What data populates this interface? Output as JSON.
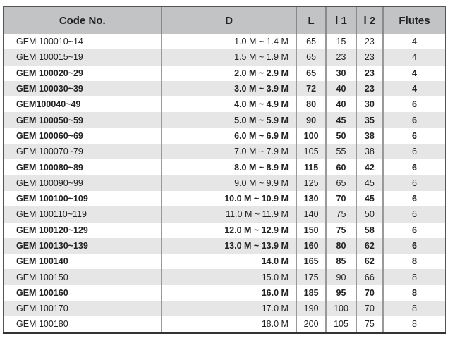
{
  "headers": [
    "Code No.",
    "D",
    "L",
    "l 1",
    "l 2",
    "Flutes"
  ],
  "rows": [
    {
      "cells": [
        "GEM 100010~14",
        "1.0 M ~ 1.4 M",
        "65",
        "15",
        "23",
        "4"
      ],
      "bold": false
    },
    {
      "cells": [
        "GEM 100015~19",
        "1.5 M ~ 1.9 M",
        "65",
        "23",
        "23",
        "4"
      ],
      "bold": false
    },
    {
      "cells": [
        "GEM 100020~29",
        "2.0 M ~ 2.9 M",
        "65",
        "30",
        "23",
        "4"
      ],
      "bold": true
    },
    {
      "cells": [
        "GEM 100030~39",
        "3.0 M ~ 3.9 M",
        "72",
        "40",
        "23",
        "4"
      ],
      "bold": true
    },
    {
      "cells": [
        "GEM100040~49",
        "4.0 M ~ 4.9 M",
        "80",
        "40",
        "30",
        "6"
      ],
      "bold": true
    },
    {
      "cells": [
        "GEM 100050~59",
        "5.0 M ~ 5.9 M",
        "90",
        "45",
        "35",
        "6"
      ],
      "bold": true
    },
    {
      "cells": [
        "GEM 100060~69",
        "6.0 M ~ 6.9 M",
        "100",
        "50",
        "38",
        "6"
      ],
      "bold": true
    },
    {
      "cells": [
        "GEM 100070~79",
        "7.0 M ~ 7.9 M",
        "105",
        "55",
        "38",
        "6"
      ],
      "bold": false
    },
    {
      "cells": [
        "GEM 100080~89",
        "8.0 M ~ 8.9 M",
        "115",
        "60",
        "42",
        "6"
      ],
      "bold": true
    },
    {
      "cells": [
        "GEM 100090~99",
        "9.0 M ~ 9.9 M",
        "125",
        "65",
        "45",
        "6"
      ],
      "bold": false
    },
    {
      "cells": [
        "GEM 100100~109",
        "10.0 M ~ 10.9 M",
        "130",
        "70",
        "45",
        "6"
      ],
      "bold": true
    },
    {
      "cells": [
        "GEM 100110~119",
        "11.0 M ~ 11.9 M",
        "140",
        "75",
        "50",
        "6"
      ],
      "bold": false
    },
    {
      "cells": [
        "GEM 100120~129",
        "12.0 M ~ 12.9 M",
        "150",
        "75",
        "58",
        "6"
      ],
      "bold": true
    },
    {
      "cells": [
        "GEM 100130~139",
        "13.0 M ~ 13.9 M",
        "160",
        "80",
        "62",
        "6"
      ],
      "bold": true
    },
    {
      "cells": [
        "GEM 100140",
        "14.0 M",
        "165",
        "85",
        "62",
        "8"
      ],
      "bold": true
    },
    {
      "cells": [
        "GEM 100150",
        "15.0 M",
        "175",
        "90",
        "66",
        "8"
      ],
      "bold": false
    },
    {
      "cells": [
        "GEM 100160",
        "16.0 M",
        "185",
        "95",
        "70",
        "8"
      ],
      "bold": true
    },
    {
      "cells": [
        "GEM 100170",
        "17.0 M",
        "190",
        "100",
        "70",
        "8"
      ],
      "bold": false
    },
    {
      "cells": [
        "GEM 100180",
        "18.0 M",
        "200",
        "105",
        "75",
        "8"
      ],
      "bold": false
    }
  ]
}
